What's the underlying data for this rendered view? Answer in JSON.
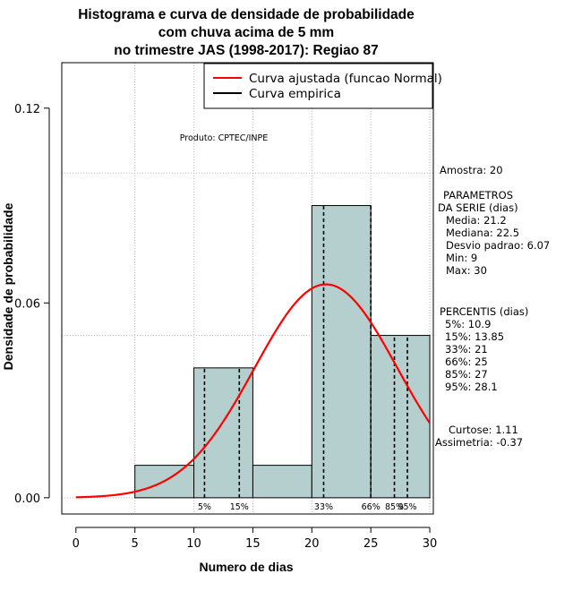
{
  "chart_data": {
    "type": "bar",
    "title": [
      "Histograma e curva de densidade de probabilidade",
      "com chuva acima de 5 mm",
      "no trimestre JAS (1998-2017): Regiao 87"
    ],
    "xlabel": "Numero de dias",
    "ylabel": "Densidade de probabilidade",
    "xlim": [
      -1.2,
      30.3
    ],
    "ylim": [
      -0.005,
      0.134
    ],
    "x_ticks": [
      0,
      5,
      10,
      15,
      20,
      25,
      30
    ],
    "x_tick_labels": [
      "0",
      "5",
      "10",
      "15",
      "20",
      "25",
      "30"
    ],
    "y_ticks": [
      0.0,
      0.06,
      0.12
    ],
    "y_tick_labels": [
      "0.00",
      "0.06",
      "0.12"
    ],
    "hgrid": [
      0.1,
      0.05
    ],
    "vgrid": [
      5,
      10,
      15,
      20,
      25,
      30
    ],
    "bins": [
      {
        "x0": 5,
        "x1": 10,
        "density": 0.01
      },
      {
        "x0": 10,
        "x1": 15,
        "density": 0.04
      },
      {
        "x0": 15,
        "x1": 20,
        "density": 0.01
      },
      {
        "x0": 20,
        "x1": 25,
        "density": 0.09
      },
      {
        "x0": 25,
        "x1": 30,
        "density": 0.05
      }
    ],
    "bar_color": "#b5cfcf",
    "normal_fit": {
      "mean": 21.2,
      "sd": 6.07,
      "color": "#ff0000",
      "x_from": 0,
      "x_to": 30
    },
    "percentile_lines": [
      {
        "label": "5%",
        "value": 10.9
      },
      {
        "label": "15%",
        "value": 13.85
      },
      {
        "label": "33%",
        "value": 21
      },
      {
        "label": "66%",
        "value": 25
      },
      {
        "label": "85%",
        "value": 27
      },
      {
        "label": "95%",
        "value": 28.1
      }
    ],
    "legend": [
      {
        "label": "Curva ajustada (funcao Normal)",
        "color": "#ff0000"
      },
      {
        "label": "Curva empirica",
        "color": "#000000"
      }
    ],
    "legend_position": "top-right",
    "annotation": "Produto: CPTEC/INPE"
  },
  "side_panel": {
    "amostra": "Amostra: 20",
    "param_title1": "PARAMETROS",
    "param_title2": "DA SERIE (dias)",
    "media": "Media: 21.2",
    "mediana": "Mediana: 22.5",
    "desvio": "Desvio padrao: 6.07",
    "min": "Min: 9",
    "max": "Max: 30",
    "perc_title": "PERCENTIS (dias)",
    "p5": "5%: 10.9",
    "p15": "15%: 13.85",
    "p33": "33%: 21",
    "p66": "66%: 25",
    "p85": "85%: 27",
    "p95": "95%: 28.1",
    "curtose": "Curtose: 1.11",
    "assimetria": "Assimetria: -0.37"
  }
}
